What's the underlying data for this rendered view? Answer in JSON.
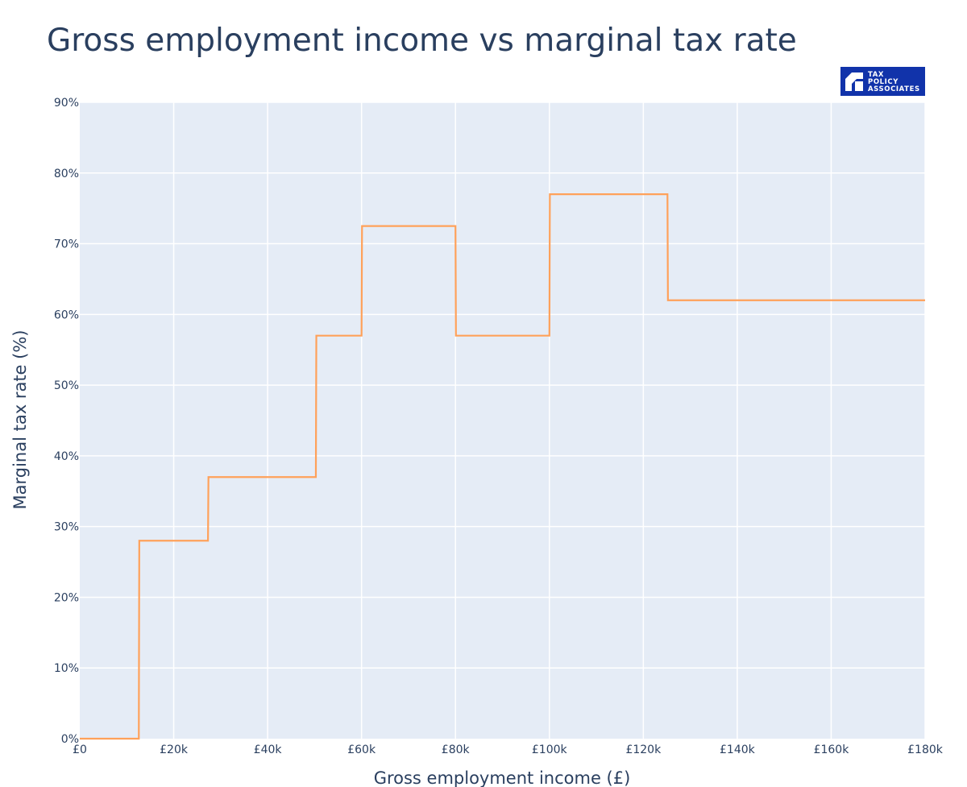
{
  "logo": {
    "lines": [
      "TAX",
      "POLICY",
      "ASSOCIATES"
    ],
    "background": "#1133aa"
  },
  "chart_data": {
    "type": "line",
    "title": "Gross employment income vs marginal tax rate",
    "xlabel": "Gross employment income (£)",
    "ylabel": "Marginal tax rate (%)",
    "xlim": [
      0,
      180000
    ],
    "ylim": [
      0,
      90
    ],
    "x_ticks": [
      {
        "value": 0,
        "label": "£0"
      },
      {
        "value": 20000,
        "label": "£20k"
      },
      {
        "value": 40000,
        "label": "£40k"
      },
      {
        "value": 60000,
        "label": "£60k"
      },
      {
        "value": 80000,
        "label": "£80k"
      },
      {
        "value": 100000,
        "label": "£100k"
      },
      {
        "value": 120000,
        "label": "£120k"
      },
      {
        "value": 140000,
        "label": "£140k"
      },
      {
        "value": 160000,
        "label": "£160k"
      },
      {
        "value": 180000,
        "label": "£180k"
      }
    ],
    "y_ticks": [
      {
        "value": 0,
        "label": "0%"
      },
      {
        "value": 10,
        "label": "10%"
      },
      {
        "value": 20,
        "label": "20%"
      },
      {
        "value": 30,
        "label": "30%"
      },
      {
        "value": 40,
        "label": "40%"
      },
      {
        "value": 50,
        "label": "50%"
      },
      {
        "value": 60,
        "label": "60%"
      },
      {
        "value": 70,
        "label": "70%"
      },
      {
        "value": 80,
        "label": "80%"
      },
      {
        "value": 90,
        "label": "90%"
      }
    ],
    "grid": true,
    "plot_background": "#e5ecf6",
    "series": [
      {
        "color": "#ffa15a",
        "x": [
          0,
          12570,
          12670,
          27300,
          27400,
          50270,
          50370,
          60000,
          60100,
          80000,
          80100,
          100000,
          100100,
          125140,
          125240,
          180000
        ],
        "y": [
          0,
          0,
          28,
          28,
          37,
          37,
          57,
          57,
          72.5,
          72.5,
          57,
          57,
          77,
          77,
          62,
          62
        ]
      }
    ]
  }
}
